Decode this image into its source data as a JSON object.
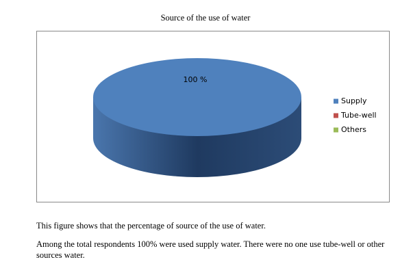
{
  "chart_data": {
    "type": "pie",
    "title": "Source of the use of water",
    "categories": [
      "Supply",
      "Tube-well",
      "Others"
    ],
    "values": [
      100,
      0,
      0
    ],
    "value_labels": [
      "100 %",
      null,
      null
    ],
    "colors": [
      "#4f81bd",
      "#c0504d",
      "#9bbb59"
    ],
    "legend": "right"
  },
  "paragraphs": [
    "This figure shows that the percentage of source of the use of water.",
    "Among the total respondents 100% were used supply water. There were no one use tube-well or other sources water."
  ]
}
